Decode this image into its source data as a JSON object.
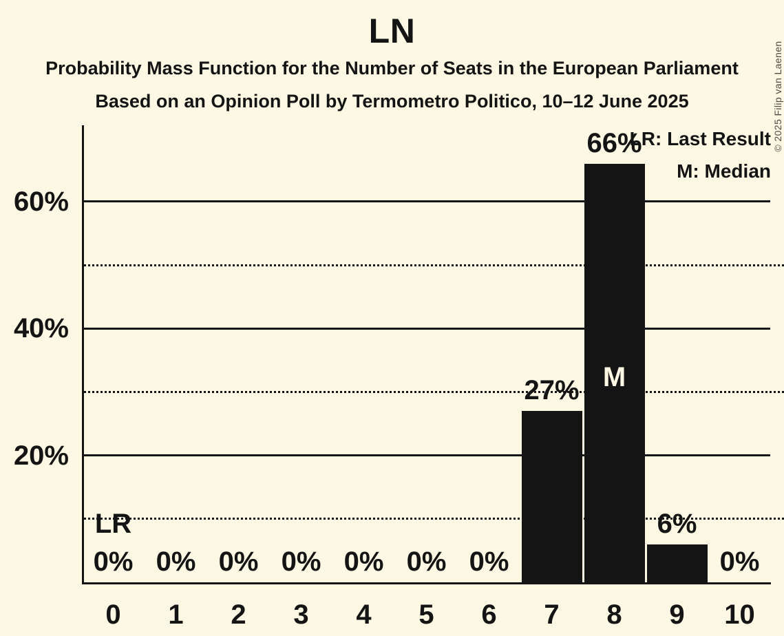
{
  "title": "LN",
  "subtitle1": "Probability Mass Function for the Number of Seats in the European Parliament",
  "subtitle2": "Based on an Opinion Poll by Termometro Politico, 10–12 June 2025",
  "copyright": "© 2025 Filip van Laenen",
  "legend": {
    "lr": "LR: Last Result",
    "m": "M: Median"
  },
  "colors": {
    "background": "#FCF8E3",
    "bar": "#141414",
    "text": "#141414",
    "median_label": "#FCF8E3",
    "copyright_text": "#4B4B44"
  },
  "chart_data": {
    "type": "bar",
    "title": "LN",
    "subtitle": "Probability Mass Function for the Number of Seats in the European Parliament",
    "source_line": "Based on an Opinion Poll by Termometro Politico, 10–12 June 2025",
    "categories": [
      "0",
      "1",
      "2",
      "3",
      "4",
      "5",
      "6",
      "7",
      "8",
      "9",
      "10"
    ],
    "values": [
      0,
      0,
      0,
      0,
      0,
      0,
      0,
      27,
      66,
      6,
      0
    ],
    "value_labels": [
      "0%",
      "0%",
      "0%",
      "0%",
      "0%",
      "0%",
      "0%",
      "27%",
      "66%",
      "6%",
      "0%"
    ],
    "ylim": [
      0,
      72
    ],
    "y_ticks": [
      {
        "pct": 20,
        "label": "20%"
      },
      {
        "pct": 40,
        "label": "40%"
      },
      {
        "pct": 60,
        "label": "60%"
      }
    ],
    "dotted_gridlines_pct": [
      10,
      30,
      50
    ],
    "grid": "horizontal",
    "legend_position": "top-right",
    "legend_entries": [
      "LR: Last Result",
      "M: Median"
    ],
    "annotations": [
      {
        "text": "LR",
        "meaning": "Last Result",
        "seat": "0"
      },
      {
        "text": "M",
        "meaning": "Median",
        "seat": "8"
      }
    ]
  }
}
